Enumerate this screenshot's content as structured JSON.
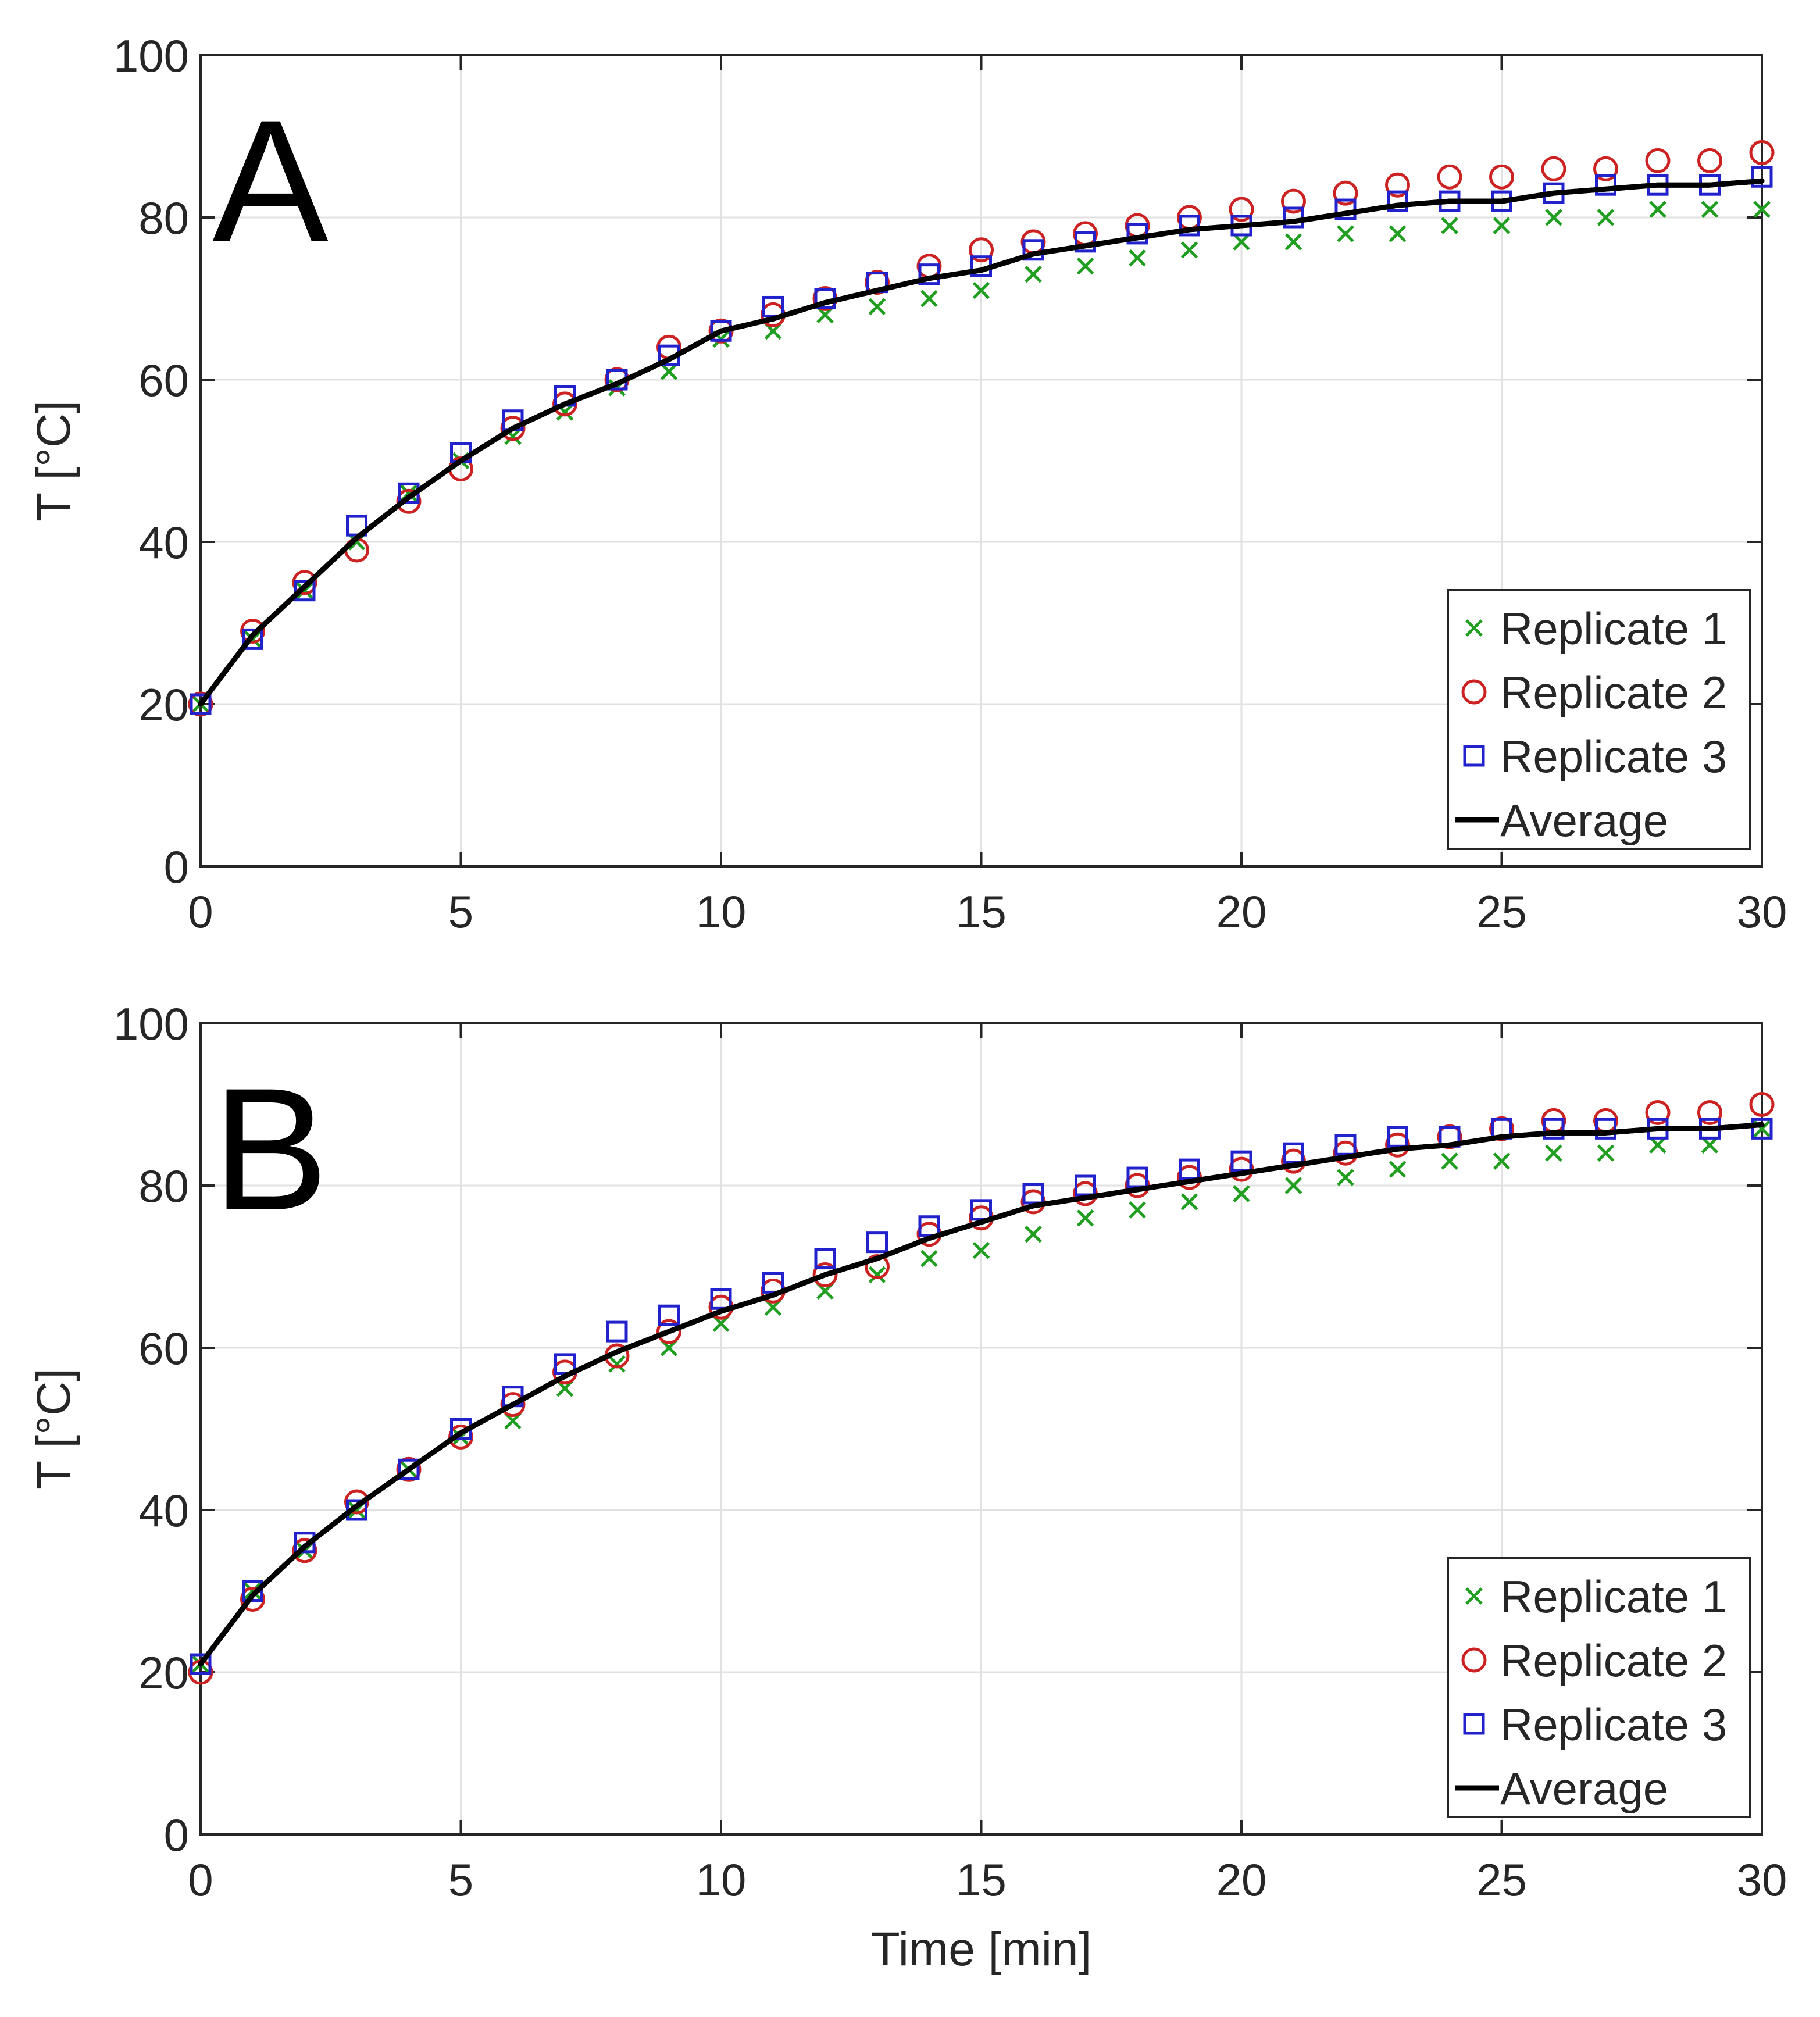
{
  "chart_data": [
    {
      "type": "scatter",
      "panel_label": "A",
      "xlabel": "",
      "ylabel": "T [°C]",
      "xlim": [
        0,
        30
      ],
      "ylim": [
        0,
        100
      ],
      "xticks": [
        "0",
        "5",
        "10",
        "15",
        "20",
        "25",
        "30"
      ],
      "yticks": [
        "0",
        "20",
        "40",
        "60",
        "80",
        "100"
      ],
      "grid": true,
      "legend_position": "bottom-right",
      "x": [
        0,
        1,
        2,
        3,
        4,
        5,
        6,
        7,
        8,
        9,
        10,
        11,
        12,
        13,
        14,
        15,
        16,
        17,
        18,
        19,
        20,
        21,
        22,
        23,
        24,
        25,
        26,
        27,
        28,
        29,
        30
      ],
      "series": [
        {
          "name": "Replicate 1",
          "marker": "x",
          "color": "#1f9e1f",
          "values": [
            20,
            28,
            34,
            40,
            46,
            50,
            53,
            56,
            59,
            61,
            65,
            66,
            68,
            69,
            70,
            71,
            73,
            74,
            75,
            76,
            77,
            77,
            78,
            78,
            79,
            79,
            80,
            80,
            81,
            81,
            81
          ]
        },
        {
          "name": "Replicate 2",
          "marker": "circle",
          "color": "#cc2222",
          "values": [
            20,
            29,
            35,
            39,
            45,
            49,
            54,
            57,
            60,
            64,
            66,
            68,
            70,
            72,
            74,
            76,
            77,
            78,
            79,
            80,
            81,
            82,
            83,
            84,
            85,
            85,
            86,
            86,
            87,
            87,
            88
          ]
        },
        {
          "name": "Replicate 3",
          "marker": "square",
          "color": "#2222cc",
          "values": [
            20,
            28,
            34,
            42,
            46,
            51,
            55,
            58,
            60,
            63,
            66,
            69,
            70,
            72,
            73,
            74,
            76,
            77,
            78,
            79,
            79,
            80,
            81,
            82,
            82,
            82,
            83,
            84,
            84,
            84,
            85
          ]
        },
        {
          "name": "Average",
          "marker": "line",
          "color": "#000000",
          "values": [
            20,
            28.5,
            34.5,
            40.5,
            45.5,
            50,
            54,
            57,
            59.5,
            62.5,
            66,
            67.5,
            69.5,
            71,
            72.5,
            73.5,
            75.5,
            76.5,
            77.5,
            78.5,
            79,
            79.5,
            80.5,
            81.5,
            82,
            82,
            83,
            83.5,
            84,
            84,
            84.5
          ]
        }
      ]
    },
    {
      "type": "scatter",
      "panel_label": "B",
      "xlabel": "Time [min]",
      "ylabel": "T [°C]",
      "xlim": [
        0,
        30
      ],
      "ylim": [
        0,
        100
      ],
      "xticks": [
        "0",
        "5",
        "10",
        "15",
        "20",
        "25",
        "30"
      ],
      "yticks": [
        "0",
        "20",
        "40",
        "60",
        "80",
        "100"
      ],
      "grid": true,
      "legend_position": "bottom-right",
      "x": [
        0,
        1,
        2,
        3,
        4,
        5,
        6,
        7,
        8,
        9,
        10,
        11,
        12,
        13,
        14,
        15,
        16,
        17,
        18,
        19,
        20,
        21,
        22,
        23,
        24,
        25,
        26,
        27,
        28,
        29,
        30
      ],
      "series": [
        {
          "name": "Replicate 1",
          "marker": "x",
          "color": "#1f9e1f",
          "values": [
            21,
            30,
            35,
            40,
            45,
            49,
            51,
            55,
            58,
            60,
            63,
            65,
            67,
            69,
            71,
            72,
            74,
            76,
            77,
            78,
            79,
            80,
            81,
            82,
            83,
            83,
            84,
            84,
            85,
            85,
            87
          ]
        },
        {
          "name": "Replicate 2",
          "marker": "circle",
          "color": "#cc2222",
          "values": [
            20,
            29,
            35,
            41,
            45,
            49,
            53,
            57,
            59,
            62,
            65,
            67,
            69,
            70,
            74,
            76,
            78,
            79,
            80,
            81,
            82,
            83,
            84,
            85,
            86,
            87,
            88,
            88,
            89,
            89,
            90
          ]
        },
        {
          "name": "Replicate 3",
          "marker": "square",
          "color": "#2222cc",
          "values": [
            21,
            30,
            36,
            40,
            45,
            50,
            54,
            58,
            62,
            64,
            66,
            68,
            71,
            73,
            75,
            77,
            79,
            80,
            81,
            82,
            83,
            84,
            85,
            86,
            86,
            87,
            87,
            87,
            87,
            87,
            87
          ]
        },
        {
          "name": "Average",
          "marker": "line",
          "color": "#000000",
          "values": [
            21,
            29.5,
            35.5,
            40.5,
            45,
            49.5,
            53,
            56.5,
            59.5,
            62,
            64.5,
            66.5,
            69,
            71,
            73.5,
            75.5,
            77.5,
            78.5,
            79.5,
            80.5,
            81.5,
            82.5,
            83.5,
            84.5,
            85,
            86,
            86.5,
            86.5,
            87,
            87,
            87.5
          ]
        }
      ]
    }
  ]
}
